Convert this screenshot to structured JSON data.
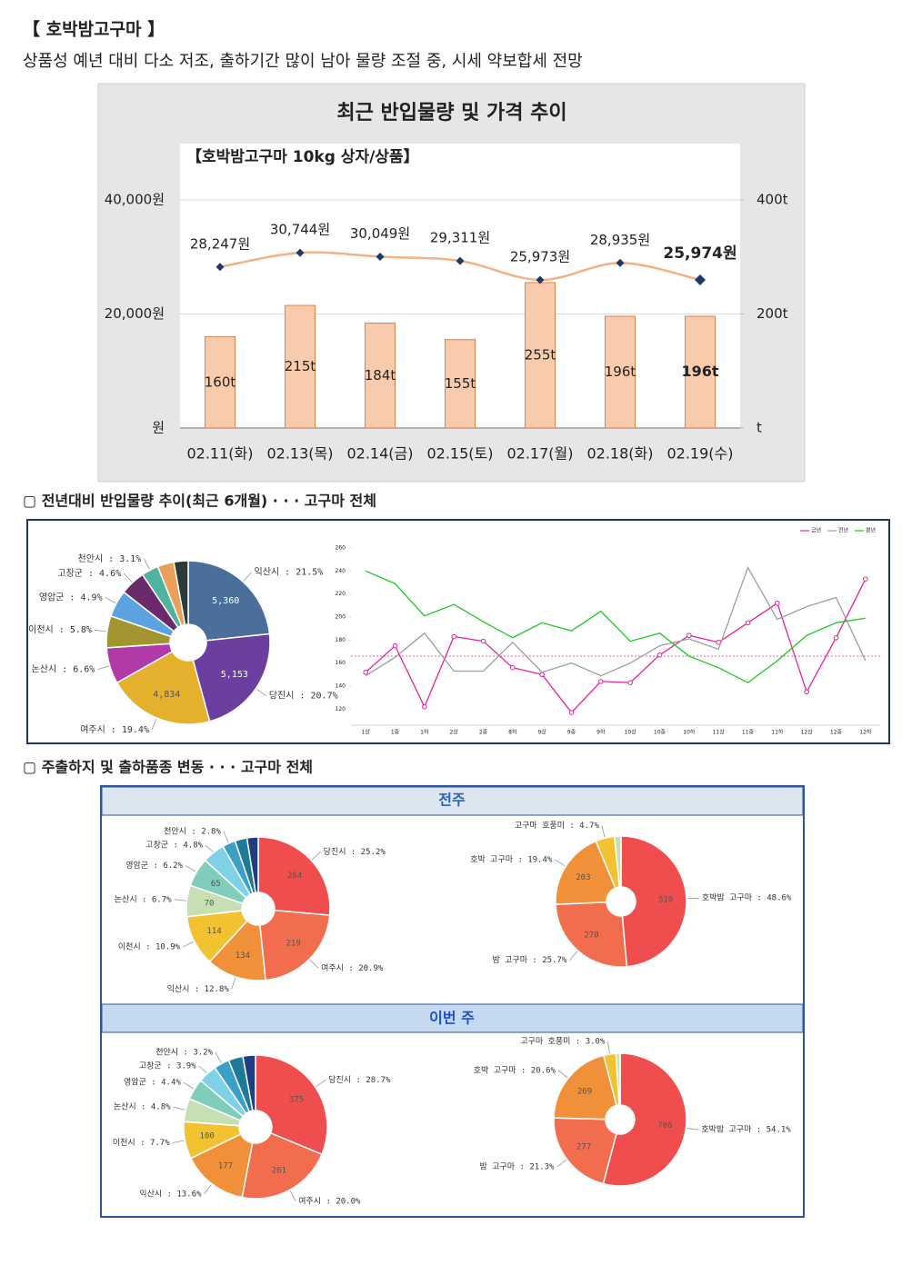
{
  "header": {
    "title": "【 호박밤고구마 】",
    "summary": "상품성 예년 대비 다소 저조, 출하기간 많이 남아 물량 조절 중, 시세 약보합세 전망"
  },
  "sections": [
    "▢ 전년대비 반입물량 추이(최근 6개월) · · · 고구마 전체",
    "▢ 주출하지 및 출하품종 변동 · · · 고구마 전체"
  ],
  "panels": [
    "전주",
    "이번 주"
  ],
  "chart_data": [
    {
      "type": "combo",
      "title": "최근 반입물량 및 가격 추이",
      "subtitle": "【호박밤고구마 10kg 상자/상품】",
      "categories": [
        "02.11(화)",
        "02.13(목)",
        "02.14(금)",
        "02.15(토)",
        "02.17(월)",
        "02.18(화)",
        "02.19(수)"
      ],
      "series": [
        {
          "type": "bar",
          "axis": "y2",
          "color": "#f8cbad",
          "values": [
            160,
            215,
            184,
            155,
            255,
            196,
            196
          ],
          "value_labels": [
            "160t",
            "215t",
            "184t",
            "155t",
            "255t",
            "196t",
            "196t"
          ]
        },
        {
          "type": "line",
          "color": "#f4b183",
          "marker_color": "#1f3864",
          "values": [
            28247,
            30744,
            30049,
            29311,
            25973,
            28935,
            25974
          ],
          "value_labels": [
            "28,247원",
            "30,744원",
            "30,049원",
            "29,311원",
            "25,973원",
            "28,935원",
            "25,974원"
          ]
        }
      ],
      "ylim": [
        0,
        40000
      ],
      "yticks": [
        {
          "value": 0,
          "label": "원"
        },
        {
          "value": 20000,
          "label": "20,000원"
        },
        {
          "value": 40000,
          "label": "40,000원"
        }
      ],
      "y2lim": [
        0,
        400
      ],
      "y2ticks": [
        {
          "value": 0,
          "label": "t"
        },
        {
          "value": 200,
          "label": "200t"
        },
        {
          "value": 400,
          "label": "400t"
        }
      ],
      "grid": true
    },
    {
      "type": "donut",
      "values": [
        21.5,
        20.7,
        19.4,
        6.6,
        5.8,
        4.9,
        4.6,
        3.1,
        3.0,
        2.6
      ],
      "value_labels": [
        "익산시 : 21.5%",
        "당진시 : 20.7%",
        "여주시 : 19.4%",
        "논산시 : 6.6%",
        "이천시 : 5.8%",
        "영암군 : 4.9%",
        "고창군 : 4.6%",
        "천안시 : 3.1%",
        null,
        null
      ],
      "amounts": [
        5360,
        5153,
        4834,
        null,
        null,
        null,
        null,
        null,
        null,
        null
      ],
      "amount_labels": [
        "5,360",
        "5,153",
        "4,834",
        null,
        null,
        null,
        null,
        null,
        null,
        null
      ],
      "colors": [
        "#4a6f9a",
        "#6a3fa0",
        "#e5b02c",
        "#b03aa8",
        "#a3952e",
        "#5ba3e0",
        "#6b2a6b",
        "#4fb3a0",
        "#e8a05a",
        "#2d3a3a"
      ]
    },
    {
      "type": "line",
      "categories": [
        "1상",
        "1중",
        "1하",
        "2상",
        "2중",
        "8하",
        "9상",
        "9중",
        "9하",
        "10상",
        "10중",
        "10하",
        "11상",
        "11중",
        "11하",
        "12상",
        "12중",
        "12하"
      ],
      "series": [
        {
          "name": "금년",
          "color": "#e8209c",
          "marker": "circle",
          "values": [
            152,
            175,
            122,
            183,
            179,
            156,
            150,
            117,
            144,
            143,
            167,
            184,
            178,
            195,
            212,
            135,
            182,
            233
          ]
        },
        {
          "name": "전년",
          "color": "#9e9e9e",
          "values": [
            149,
            165,
            186,
            153,
            153,
            178,
            152,
            160,
            149,
            160,
            175,
            181,
            172,
            243,
            198,
            209,
            217,
            162
          ]
        },
        {
          "name": "평년",
          "color": "#1ec81e",
          "values": [
            240,
            229,
            201,
            211,
            196,
            182,
            195,
            188,
            205,
            179,
            186,
            166,
            156,
            143,
            162,
            184,
            195,
            199
          ]
        }
      ],
      "ylim": [
        106,
        260
      ],
      "yticks": [
        120,
        140,
        160,
        180,
        200,
        220,
        240,
        260
      ],
      "reference_line": 166,
      "legend": "top-right",
      "grid": false
    },
    {
      "type": "donut",
      "values": [
        25.2,
        20.9,
        12.8,
        10.9,
        6.7,
        6.2,
        4.8,
        2.8,
        2.6,
        2.4
      ],
      "value_labels": [
        "당진시 : 25.2%",
        "여주시 : 20.9%",
        "익산시 : 12.8%",
        "이천시 : 10.9%",
        "논산시 : 6.7%",
        "영암군 : 6.2%",
        "고창군 : 4.8%",
        "천안시 : 2.8%",
        null,
        null
      ],
      "amounts": [
        264,
        219,
        134,
        114,
        70,
        65,
        null,
        null,
        null,
        null
      ],
      "colors": [
        "#f04e4e",
        "#f26d4d",
        "#f0913a",
        "#f2c230",
        "#c6e0b4",
        "#7fcdbb",
        "#7fd1e8",
        "#3aa0c8",
        "#1f7a9a",
        "#1d3f80"
      ]
    },
    {
      "type": "donut",
      "values": [
        48.6,
        25.7,
        19.4,
        4.7,
        1.6
      ],
      "value_labels": [
        "호박밤 고구마 : 48.6%",
        "밤 고구마 : 25.7%",
        "호박 고구마 : 19.4%",
        "고구마 호풍미 : 4.7%",
        null
      ],
      "amounts": [
        510,
        270,
        203,
        null,
        null
      ],
      "colors": [
        "#f04e4e",
        "#f26d4d",
        "#f0913a",
        "#f2c230",
        "#c6e0b4"
      ]
    },
    {
      "type": "donut",
      "values": [
        28.7,
        20.0,
        13.6,
        7.7,
        4.8,
        4.4,
        3.9,
        3.2,
        3.0,
        2.6
      ],
      "value_labels": [
        "당진시 : 28.7%",
        "여주시 : 20.0%",
        "익산시 : 13.6%",
        "이천시 : 7.7%",
        "논산시 : 4.8%",
        "영암군 : 4.4%",
        "고창군 : 3.9%",
        "천안시 : 3.2%",
        null,
        null
      ],
      "amounts": [
        375,
        261,
        177,
        100,
        null,
        null,
        null,
        null,
        null,
        null
      ],
      "colors": [
        "#f04e4e",
        "#f26d4d",
        "#f0913a",
        "#f2c230",
        "#c6e0b4",
        "#7fcdbb",
        "#7fd1e8",
        "#3aa0c8",
        "#1f7a9a",
        "#1d3f80"
      ]
    },
    {
      "type": "donut",
      "values": [
        54.1,
        21.3,
        20.6,
        3.0,
        1.0
      ],
      "value_labels": [
        "호박밤 고구마 : 54.1%",
        "밤 고구마 : 21.3%",
        "호박 고구마 : 20.6%",
        "고구마 호풍미 : 3.0%",
        null
      ],
      "amounts": [
        706,
        277,
        269,
        null,
        null
      ],
      "colors": [
        "#f04e4e",
        "#f26d4d",
        "#f0913a",
        "#f2c230",
        "#c6e0b4"
      ]
    }
  ]
}
